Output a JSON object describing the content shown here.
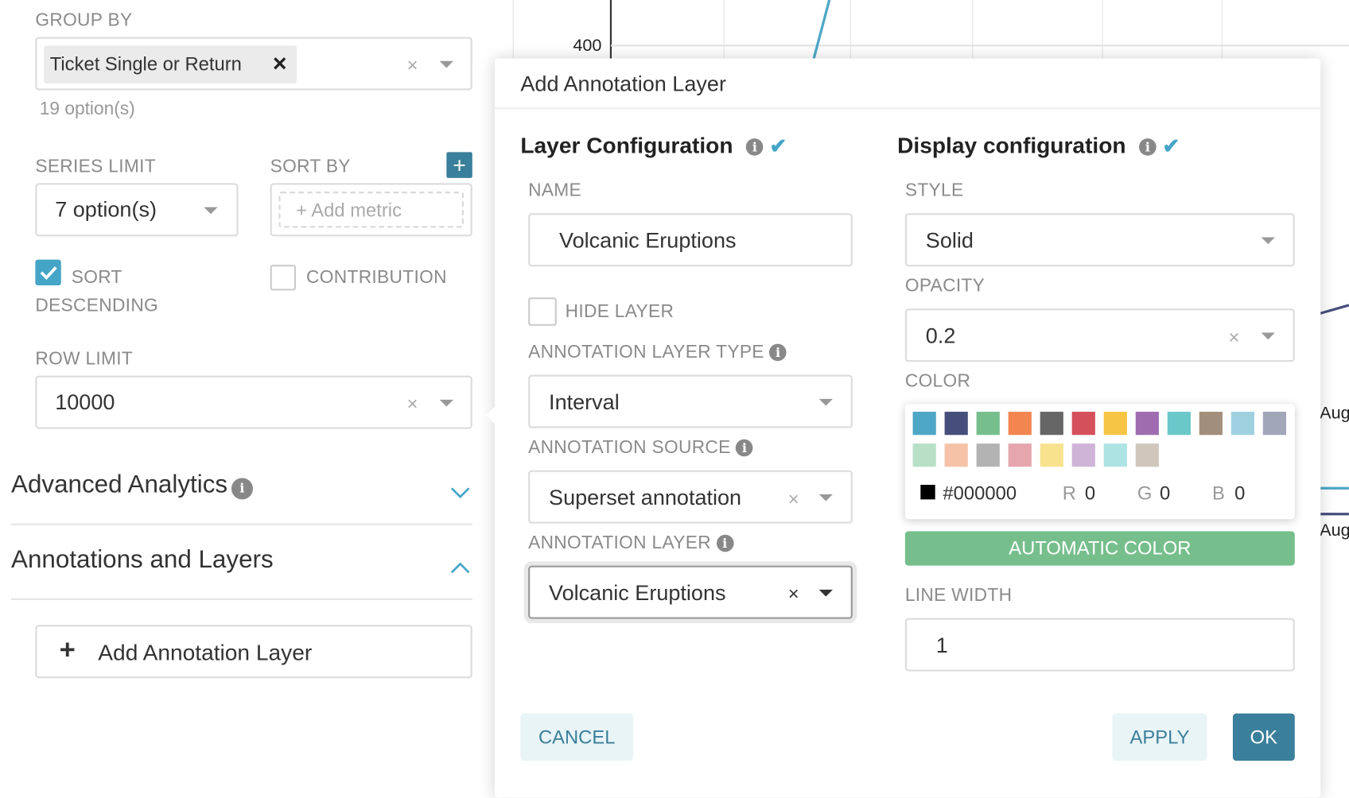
{
  "left": {
    "group_by": {
      "label": "GROUP BY",
      "tag": "Ticket Single or Return",
      "tag_remove": "×",
      "hint": "19 option(s)"
    },
    "series_limit": {
      "label": "SERIES LIMIT",
      "value": "7 option(s)"
    },
    "sort_by": {
      "label": "SORT BY",
      "add_icon": "+",
      "placeholder": "+ Add metric"
    },
    "sort_descending": {
      "label": "SORT DESCENDING",
      "label1": "SORT",
      "label2": "DESCENDING",
      "checked": true
    },
    "contribution": {
      "label": "CONTRIBUTION",
      "checked": false
    },
    "row_limit": {
      "label": "ROW LIMIT",
      "value": "10000"
    },
    "sections": [
      {
        "title": "Advanced Analytics",
        "expanded": false
      },
      {
        "title": "Annotations and Layers",
        "expanded": true
      }
    ],
    "add_annotation_layer": "Add Annotation Layer"
  },
  "chart": {
    "y_tick": "400",
    "x_ticks": [
      "Aug",
      "Aug"
    ],
    "line_colors": [
      "#4da7c7",
      "#454e7c"
    ]
  },
  "modal": {
    "title": "Add Annotation Layer",
    "layer_config": {
      "heading": "Layer Configuration",
      "name": {
        "label": "NAME",
        "value": "Volcanic Eruptions"
      },
      "hide_layer": {
        "label": "HIDE LAYER",
        "checked": false
      },
      "layer_type": {
        "label": "ANNOTATION LAYER TYPE",
        "value": "Interval"
      },
      "source": {
        "label": "ANNOTATION SOURCE",
        "value": "Superset annotation"
      },
      "layer": {
        "label": "ANNOTATION LAYER",
        "value": "Volcanic Eruptions"
      }
    },
    "display_config": {
      "heading": "Display configuration",
      "style": {
        "label": "STYLE",
        "value": "Solid"
      },
      "opacity": {
        "label": "OPACITY",
        "value": "0.2"
      },
      "color": {
        "label": "COLOR",
        "hex": "#000000",
        "r_label": "R",
        "r": "0",
        "g_label": "G",
        "g": "0",
        "b_label": "B",
        "b": "0",
        "swatches": [
          "#4ea7c6",
          "#464f7b",
          "#76bf8c",
          "#f28550",
          "#666666",
          "#d4505b",
          "#f6c544",
          "#9f6daf",
          "#6ac8c8",
          "#a28f7b",
          "#9fd0e0",
          "#a1a6b9",
          "#b8e0c7",
          "#f5c2a8",
          "#b3b3b3",
          "#e6a6ad",
          "#f8e28e",
          "#cfb4d8",
          "#aee3e4",
          "#d0c6bc"
        ]
      },
      "automatic_color": "AUTOMATIC COLOR",
      "line_width": {
        "label": "LINE WIDTH",
        "value": "1"
      }
    },
    "buttons": {
      "cancel": "CANCEL",
      "apply": "APPLY",
      "ok": "OK"
    },
    "colors": {
      "primary": "#3a7f9b",
      "success": "#76bf8c",
      "accent": "#45a5c7"
    }
  }
}
